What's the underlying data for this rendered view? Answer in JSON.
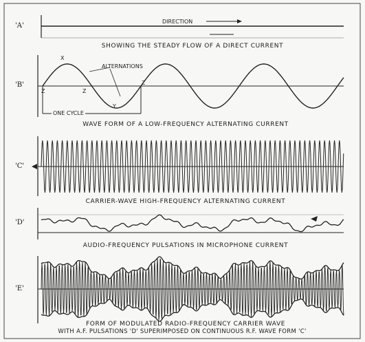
{
  "panels": {
    "a": {
      "label": "'A'",
      "direction_label": "DIRECTION",
      "caption": "SHOWING THE STEADY FLOW OF A DIRECT CURRENT"
    },
    "b": {
      "label": "'B'",
      "peak_label": "X",
      "alternations_label": "ALTERNATIONS",
      "trough_label": "Y",
      "zero_label_1": "Z",
      "zero_label_2": "Z",
      "zero_label_3": "Z",
      "one_cycle_label": "ONE CYCLE",
      "caption": "WAVE FORM OF A LOW-FREQUENCY ALTERNATING CURRENT"
    },
    "c": {
      "label": "'C'",
      "caption": "CARRIER-WAVE HIGH-FREQUENCY ALTERNATING CURRENT"
    },
    "d": {
      "label": "'D'",
      "caption": "AUDIO-FREQUENCY PULSATIONS IN MICROPHONE CURRENT"
    },
    "e": {
      "label": "'E'",
      "caption_line_1": "FORM OF MODULATED RADIO-FREQUENCY CARRIER WAVE",
      "caption_line_2": "WITH A.F. PULSATIONS 'D' SUPERIMPOSED ON CONTINUOUS R.F. WAVE FORM 'C'"
    }
  },
  "colors": {
    "ink": "#222222",
    "paper": "#f7f7f5"
  }
}
